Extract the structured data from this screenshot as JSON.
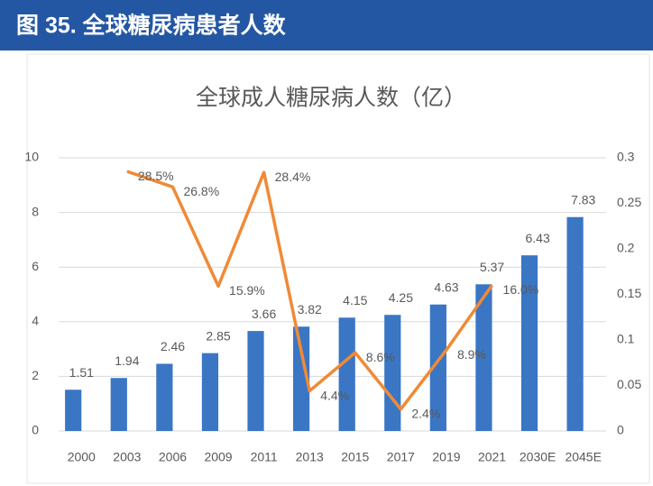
{
  "header": {
    "title": "图 35. 全球糖尿病患者人数"
  },
  "chart_data": {
    "type": "bar",
    "title": "全球成人糖尿病人数（亿）",
    "categories": [
      "2000",
      "2003",
      "2006",
      "2009",
      "2011",
      "2013",
      "2015",
      "2017",
      "2019",
      "2021",
      "2030E",
      "2045E"
    ],
    "series": [
      {
        "type": "bar",
        "color": "#3a76c4",
        "values": [
          1.51,
          1.94,
          2.46,
          2.85,
          3.66,
          3.82,
          4.15,
          4.25,
          4.63,
          5.37,
          6.43,
          7.83
        ]
      },
      {
        "type": "line",
        "axis": "y2",
        "color": "#f08a36",
        "values": [
          null,
          0.285,
          0.268,
          0.159,
          0.284,
          0.044,
          0.086,
          0.024,
          0.089,
          0.16,
          null,
          null
        ],
        "value_labels": [
          null,
          "28.5%",
          "26.8%",
          "15.9%",
          "28.4%",
          "4.4%",
          "8.6%",
          "2.4%",
          "8.9%",
          "16.0%",
          null,
          null
        ]
      }
    ],
    "ylim": [
      0,
      10
    ],
    "yticks": [
      0,
      2,
      4,
      6,
      8,
      10
    ],
    "y2lim": [
      0,
      0.3
    ],
    "y2ticks": [
      0,
      0.05,
      0.1,
      0.15,
      0.2,
      0.25,
      0.3
    ],
    "grid": true
  }
}
